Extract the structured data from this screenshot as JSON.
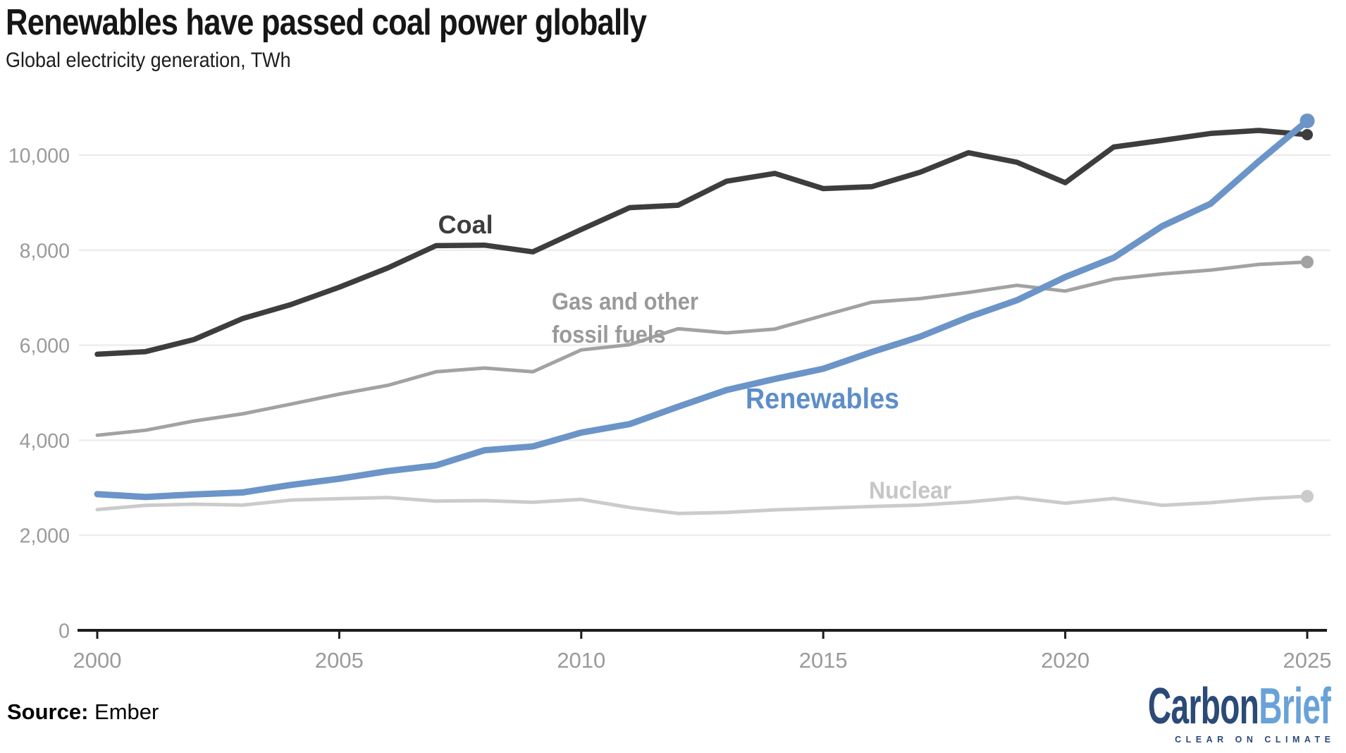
{
  "header": {
    "title": "Renewables have passed coal power globally",
    "subtitle": "Global electricity generation, TWh"
  },
  "footer": {
    "source_label": "Source:",
    "source_value": "Ember",
    "logo": {
      "part1": "Carbon",
      "part2": "Brief",
      "tagline": "CLEAR ON CLIMATE"
    }
  },
  "chart_data": {
    "type": "line",
    "title": "Renewables have passed coal power globally",
    "subtitle": "Global electricity generation, TWh",
    "xlabel": "",
    "ylabel": "TWh",
    "x": [
      2000,
      2001,
      2002,
      2003,
      2004,
      2005,
      2006,
      2007,
      2008,
      2009,
      2010,
      2011,
      2012,
      2013,
      2014,
      2015,
      2016,
      2017,
      2018,
      2019,
      2020,
      2021,
      2022,
      2023,
      2024,
      2025
    ],
    "series": [
      {
        "name": "Nuclear",
        "color": "#cbcbcb",
        "label_color": "#c6c6c6",
        "line_width": 5,
        "dot_r": 9,
        "values": [
          2540,
          2630,
          2655,
          2635,
          2740,
          2770,
          2795,
          2720,
          2730,
          2695,
          2755,
          2585,
          2460,
          2480,
          2535,
          2570,
          2605,
          2635,
          2700,
          2795,
          2675,
          2775,
          2630,
          2685,
          2770,
          2820
        ]
      },
      {
        "name": "Gas and other fossil fuels",
        "color": "#a2a2a2",
        "label_color": "#9a9a9a",
        "line_width": 5,
        "dot_r": 9,
        "values": [
          4105,
          4210,
          4405,
          4555,
          4760,
          4970,
          5155,
          5440,
          5520,
          5440,
          5900,
          6010,
          6345,
          6260,
          6340,
          6625,
          6905,
          6980,
          7110,
          7260,
          7140,
          7390,
          7500,
          7580,
          7700,
          7750
        ]
      },
      {
        "name": "Coal",
        "color": "#3d3d3d",
        "label_color": "#3d3d3d",
        "line_width": 7.5,
        "dot_r": 8,
        "values": [
          5810,
          5865,
          6120,
          6560,
          6855,
          7220,
          7625,
          8095,
          8105,
          7965,
          8435,
          8895,
          8945,
          9450,
          9615,
          9295,
          9335,
          9640,
          10050,
          9850,
          9420,
          10170,
          10310,
          10455,
          10520,
          10430
        ]
      },
      {
        "name": "Renewables",
        "color": "#6b94c8",
        "label_color": "#5d8dca",
        "line_width": 9,
        "dot_r": 10.5,
        "values": [
          2865,
          2805,
          2860,
          2900,
          3060,
          3190,
          3350,
          3470,
          3790,
          3870,
          4160,
          4340,
          4705,
          5055,
          5290,
          5505,
          5855,
          6180,
          6590,
          6945,
          7435,
          7840,
          8505,
          8975,
          9870,
          10720
        ]
      }
    ],
    "annotations": [
      {
        "text": "Coal",
        "x": 2007.61,
        "y": 8320,
        "color": "#3d3d3d",
        "size": 36,
        "anchor": "middle",
        "scale_x": 1.0
      },
      {
        "text": "Gas and other",
        "x": 2009.39,
        "y": 6710,
        "color": "#9a9a9a",
        "size": 34,
        "anchor": "start",
        "scale_x": 0.91
      },
      {
        "text": "fossil fuels",
        "x": 2009.39,
        "y": 6020,
        "color": "#9a9a9a",
        "size": 34,
        "anchor": "start",
        "scale_x": 0.91
      },
      {
        "text": "Renewables",
        "x": 2013.39,
        "y": 4630,
        "color": "#5d8dca",
        "size": 41,
        "anchor": "start",
        "scale_x": 0.92
      },
      {
        "text": "Nuclear",
        "x": 2015.94,
        "y": 2730,
        "color": "#c6c6c6",
        "size": 34,
        "anchor": "start",
        "scale_x": 0.94
      }
    ],
    "xticks": [
      2000,
      2005,
      2010,
      2015,
      2020,
      2025
    ],
    "yticks": [
      0,
      2000,
      4000,
      6000,
      8000,
      10000
    ],
    "xlim": [
      2000,
      2025
    ],
    "ylim": [
      0,
      11100
    ],
    "grid": "horizontal",
    "end_dots": true,
    "legend_position": "inline-labels",
    "styles": {
      "grid_color": "#e9e9e9",
      "axis_color": "#1c1c1c",
      "tick_label_color": "#9a9a9a",
      "background": "#ffffff"
    }
  }
}
